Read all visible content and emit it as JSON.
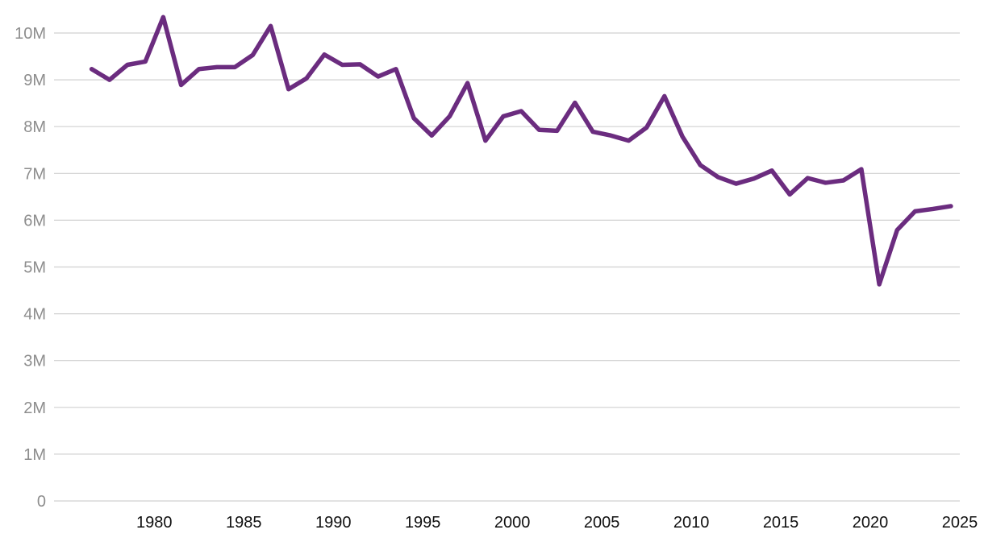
{
  "chart_data": {
    "type": "line",
    "title": "",
    "xlabel": "",
    "ylabel": "",
    "xlim": [
      1974.4,
      2025
    ],
    "ylim": [
      0,
      10000000
    ],
    "grid": true,
    "legend": "none",
    "x_ticks": [
      1980,
      1985,
      1990,
      1995,
      2000,
      2005,
      2010,
      2015,
      2020,
      2025
    ],
    "y_ticks": [
      {
        "value": 0,
        "label": "0"
      },
      {
        "value": 1000000,
        "label": "1M"
      },
      {
        "value": 2000000,
        "label": "2M"
      },
      {
        "value": 3000000,
        "label": "3M"
      },
      {
        "value": 4000000,
        "label": "4M"
      },
      {
        "value": 5000000,
        "label": "5M"
      },
      {
        "value": 6000000,
        "label": "6M"
      },
      {
        "value": 7000000,
        "label": "7M"
      },
      {
        "value": 8000000,
        "label": "8M"
      },
      {
        "value": 9000000,
        "label": "9M"
      },
      {
        "value": 10000000,
        "label": "10M"
      }
    ],
    "series": [
      {
        "color": "#6b2c7f",
        "x": [
          1976.5,
          1977.5,
          1978.5,
          1979.5,
          1980.5,
          1981.5,
          1982.5,
          1983.5,
          1984.5,
          1985.5,
          1986.5,
          1987.5,
          1988.5,
          1989.5,
          1990.5,
          1991.5,
          1992.5,
          1993.5,
          1994.5,
          1995.5,
          1996.5,
          1997.5,
          1998.5,
          1999.5,
          2000.5,
          2001.5,
          2002.5,
          2003.5,
          2004.5,
          2005.5,
          2006.5,
          2007.5,
          2008.5,
          2009.5,
          2010.5,
          2011.5,
          2012.5,
          2013.5,
          2014.5,
          2015.5,
          2016.5,
          2017.5,
          2018.5,
          2019.5,
          2020.5,
          2021.5,
          2022.5,
          2023.5,
          2024.5
        ],
        "values": [
          9230000,
          9000000,
          9320000,
          9390000,
          10340000,
          8890000,
          9230000,
          9270000,
          9270000,
          9530000,
          10150000,
          8800000,
          9030000,
          9540000,
          9320000,
          9330000,
          9070000,
          9230000,
          8180000,
          7810000,
          8220000,
          8930000,
          7700000,
          8220000,
          8330000,
          7930000,
          7910000,
          8510000,
          7890000,
          7810000,
          7700000,
          7980000,
          8650000,
          7790000,
          7180000,
          6920000,
          6780000,
          6890000,
          7060000,
          6550000,
          6900000,
          6800000,
          6850000,
          7090000,
          4630000,
          5790000,
          6190000,
          6240000,
          6300000
        ]
      }
    ]
  }
}
